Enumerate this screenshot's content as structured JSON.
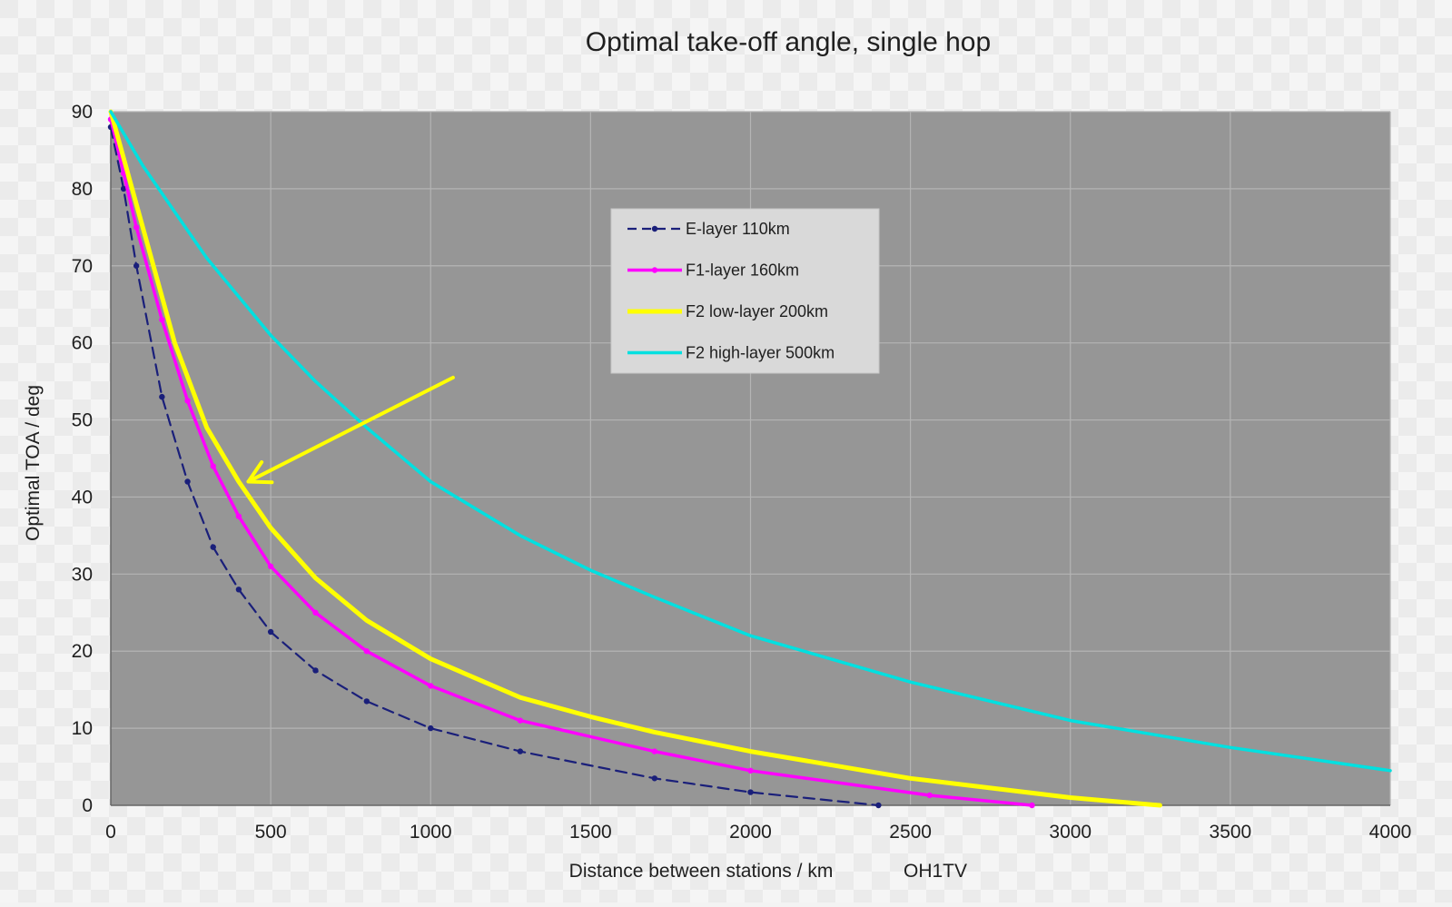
{
  "chart_data": {
    "type": "line",
    "title": "Optimal take-off angle, single hop",
    "xlabel": "Distance between stations / km",
    "xlabel_note": "OH1TV",
    "ylabel": "Optimal TOA / deg",
    "xlim": [
      0,
      4000
    ],
    "ylim": [
      0,
      90
    ],
    "xticks": [
      0,
      500,
      1000,
      1500,
      2000,
      2500,
      3000,
      3500,
      4000
    ],
    "yticks": [
      0,
      10,
      20,
      30,
      40,
      50,
      60,
      70,
      80,
      90
    ],
    "grid": true,
    "plot_background": "#969696",
    "legend": {
      "placement": "top-center"
    },
    "series": [
      {
        "name": "E-layer    110km",
        "color": "#1a1f7a",
        "style": "dashed",
        "marker": "dot",
        "x": [
          0,
          40,
          80,
          160,
          240,
          320,
          400,
          500,
          640,
          800,
          1000,
          1280,
          1700,
          2000,
          2400
        ],
        "y": [
          88,
          80,
          70,
          53,
          42,
          33.5,
          28,
          22.5,
          17.5,
          13.5,
          10,
          7,
          3.5,
          1.7,
          0
        ]
      },
      {
        "name": "F1-layer   160km",
        "color": "#ff00ff",
        "style": "solid",
        "marker": "dot",
        "x": [
          0,
          40,
          80,
          160,
          240,
          320,
          400,
          500,
          640,
          800,
          1000,
          1280,
          1700,
          2000,
          2560,
          2880
        ],
        "y": [
          89,
          82,
          75,
          63,
          52.5,
          44,
          37.5,
          31,
          25,
          20,
          15.5,
          11,
          7,
          4.5,
          1.3,
          0
        ]
      },
      {
        "name": "F2 low-layer   200km",
        "color": "#ffff00",
        "style": "solid",
        "marker": "none",
        "x": [
          0,
          100,
          200,
          300,
          400,
          500,
          640,
          800,
          1000,
          1280,
          1500,
          1700,
          2000,
          2500,
          3000,
          3280
        ],
        "y": [
          90,
          75,
          60,
          49,
          42,
          36,
          29.5,
          24,
          19,
          14,
          11.5,
          9.5,
          7,
          3.5,
          1,
          0
        ]
      },
      {
        "name": "F2 high-layer  500km",
        "color": "#00e0e0",
        "style": "solid",
        "marker": "none",
        "x": [
          0,
          100,
          200,
          300,
          400,
          500,
          640,
          800,
          1000,
          1280,
          1500,
          1700,
          2000,
          2500,
          3000,
          3500,
          4000
        ],
        "y": [
          90,
          83,
          77,
          71,
          66,
          61,
          55,
          49,
          42,
          35,
          30.5,
          27,
          22,
          16,
          11,
          7.5,
          4.5
        ]
      }
    ],
    "annotations": [
      {
        "type": "arrow",
        "color": "#ffff00",
        "from": [
          1070,
          55.5
        ],
        "to": [
          430,
          42
        ]
      }
    ]
  }
}
